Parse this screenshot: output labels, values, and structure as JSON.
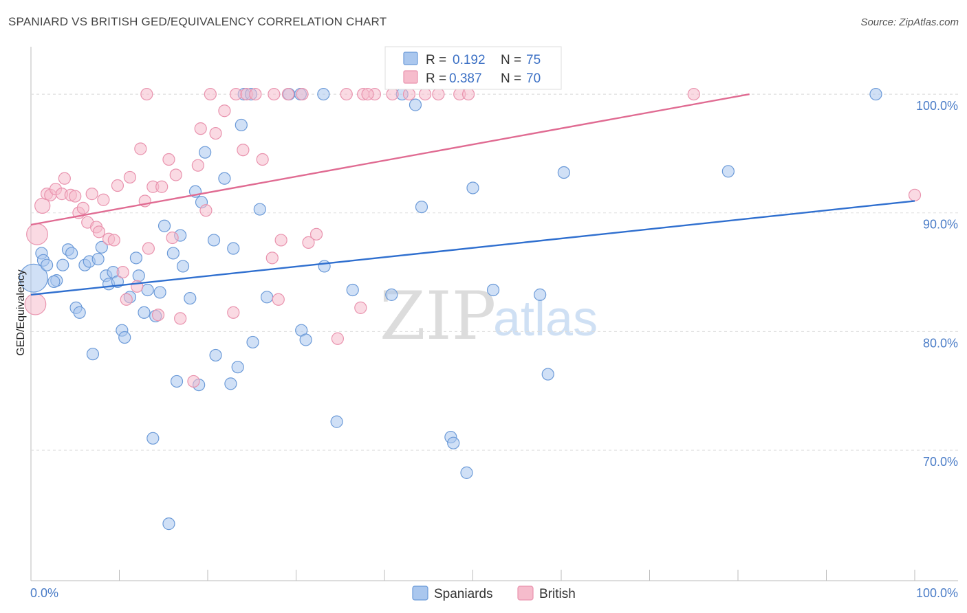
{
  "title": "SPANIARD VS BRITISH GED/EQUIVALENCY CORRELATION CHART",
  "source": "Source: ZipAtlas.com",
  "watermark": {
    "zip": "ZIP",
    "atlas": "atlas"
  },
  "colors": {
    "spaniards_fill": "#aac7ee",
    "spaniards_stroke": "#6b9ad8",
    "spaniards_line": "#2f6fcf",
    "british_fill": "#f6bccc",
    "british_stroke": "#e993ae",
    "british_line": "#e06b92",
    "tick_text": "#4a7cc7",
    "grid": "#dddddd"
  },
  "legend": {
    "r_label": "R =",
    "n_label": "N =",
    "rows": [
      {
        "r": "0.192",
        "n": "75"
      },
      {
        "r": "0.387",
        "n": "70"
      }
    ]
  },
  "chart_data": {
    "type": "scatter",
    "title": "SPANIARD VS BRITISH GED/EQUIVALENCY CORRELATION CHART",
    "xlabel": "",
    "ylabel": "GED/Equivalency",
    "xlim": [
      0,
      100
    ],
    "ylim": [
      59,
      104
    ],
    "x_tick_labels": [
      "0.0%",
      "100.0%"
    ],
    "y_ticks": [
      70,
      80,
      90,
      100
    ],
    "y_tick_labels": [
      "70.0%",
      "80.0%",
      "90.0%",
      "100.0%"
    ],
    "grid": true,
    "legend_position": "top-center",
    "series": [
      {
        "name": "Spaniards",
        "trend": {
          "x": [
            0,
            100
          ],
          "y": [
            83.1,
            91.0
          ]
        },
        "points": [
          [
            0.3,
            84.5,
            2.4
          ],
          [
            1.2,
            86.6,
            1
          ],
          [
            1.4,
            86.0,
            1
          ],
          [
            1.8,
            85.6,
            1
          ],
          [
            2.9,
            84.3,
            1
          ],
          [
            2.6,
            84.2,
            1
          ],
          [
            3.6,
            85.6,
            1
          ],
          [
            4.2,
            86.9,
            1
          ],
          [
            4.6,
            86.6,
            1
          ],
          [
            5.1,
            82.0,
            1
          ],
          [
            5.5,
            81.6,
            1
          ],
          [
            6.1,
            85.6,
            1
          ],
          [
            6.6,
            85.9,
            1
          ],
          [
            7.0,
            78.1,
            1
          ],
          [
            7.6,
            86.1,
            1
          ],
          [
            8.0,
            87.1,
            1
          ],
          [
            8.5,
            84.7,
            1
          ],
          [
            8.8,
            84.0,
            1
          ],
          [
            9.3,
            85.0,
            1
          ],
          [
            9.8,
            84.2,
            1
          ],
          [
            10.3,
            80.1,
            1
          ],
          [
            10.6,
            79.5,
            1
          ],
          [
            11.2,
            82.9,
            1
          ],
          [
            11.9,
            86.2,
            1
          ],
          [
            12.2,
            84.7,
            1
          ],
          [
            12.8,
            81.6,
            1
          ],
          [
            13.2,
            83.5,
            1
          ],
          [
            13.8,
            71.0,
            1
          ],
          [
            14.1,
            81.3,
            1
          ],
          [
            14.6,
            83.3,
            1
          ],
          [
            15.1,
            88.9,
            1
          ],
          [
            15.6,
            63.8,
            1
          ],
          [
            16.1,
            86.6,
            1
          ],
          [
            16.5,
            75.8,
            1
          ],
          [
            16.9,
            88.1,
            1
          ],
          [
            17.2,
            85.5,
            1
          ],
          [
            18.0,
            82.8,
            1
          ],
          [
            18.6,
            91.8,
            1
          ],
          [
            19.0,
            75.5,
            1
          ],
          [
            19.3,
            90.9,
            1
          ],
          [
            19.7,
            95.1,
            1
          ],
          [
            20.7,
            87.7,
            1
          ],
          [
            20.9,
            78.0,
            1
          ],
          [
            21.9,
            92.9,
            1
          ],
          [
            22.6,
            75.6,
            1
          ],
          [
            22.9,
            87.0,
            1
          ],
          [
            23.4,
            77.0,
            1
          ],
          [
            23.8,
            97.4,
            1
          ],
          [
            24.1,
            100.0,
            1
          ],
          [
            24.9,
            100.0,
            1
          ],
          [
            25.1,
            79.1,
            1
          ],
          [
            25.9,
            90.3,
            1
          ],
          [
            26.7,
            82.9,
            1
          ],
          [
            29.2,
            100.0,
            1
          ],
          [
            30.6,
            80.1,
            1
          ],
          [
            31.1,
            79.3,
            1
          ],
          [
            33.1,
            100.0,
            1
          ],
          [
            33.2,
            85.5,
            1
          ],
          [
            34.6,
            72.4,
            1
          ],
          [
            36.4,
            83.5,
            1
          ],
          [
            40.8,
            83.1,
            1
          ],
          [
            42.0,
            100.0,
            1
          ],
          [
            43.5,
            99.1,
            1
          ],
          [
            44.2,
            90.5,
            1
          ],
          [
            47.5,
            71.1,
            1
          ],
          [
            47.8,
            70.6,
            1
          ],
          [
            49.3,
            68.1,
            1
          ],
          [
            50.0,
            92.1,
            1
          ],
          [
            52.3,
            83.5,
            1
          ],
          [
            57.6,
            83.1,
            1
          ],
          [
            58.5,
            76.4,
            1
          ],
          [
            60.3,
            93.4,
            1
          ],
          [
            78.9,
            93.5,
            1
          ],
          [
            95.6,
            100.0,
            1
          ],
          [
            30.5,
            100.0,
            1
          ]
        ]
      },
      {
        "name": "British",
        "trend": {
          "x": [
            0,
            81.3
          ],
          "y": [
            89.0,
            100.0
          ]
        },
        "points": [
          [
            0.5,
            82.3,
            1.8
          ],
          [
            0.7,
            88.2,
            1.8
          ],
          [
            1.3,
            90.6,
            1.3
          ],
          [
            1.8,
            91.6,
            1
          ],
          [
            2.2,
            91.5,
            1
          ],
          [
            2.8,
            92.0,
            1
          ],
          [
            3.5,
            91.6,
            1
          ],
          [
            3.8,
            92.9,
            1
          ],
          [
            4.5,
            91.5,
            1
          ],
          [
            5.0,
            91.4,
            1
          ],
          [
            5.4,
            90.0,
            1
          ],
          [
            5.9,
            90.4,
            1
          ],
          [
            6.4,
            89.2,
            1
          ],
          [
            6.9,
            91.6,
            1
          ],
          [
            7.4,
            88.8,
            1
          ],
          [
            7.7,
            88.4,
            1
          ],
          [
            8.2,
            91.1,
            1
          ],
          [
            8.8,
            87.8,
            1
          ],
          [
            9.4,
            87.7,
            1
          ],
          [
            9.8,
            92.3,
            1
          ],
          [
            10.4,
            85.0,
            1
          ],
          [
            10.8,
            82.7,
            1
          ],
          [
            11.2,
            93.0,
            1
          ],
          [
            12.0,
            83.8,
            1
          ],
          [
            12.4,
            95.4,
            1
          ],
          [
            12.9,
            91.0,
            1
          ],
          [
            13.3,
            87.0,
            1
          ],
          [
            13.8,
            92.2,
            1
          ],
          [
            14.4,
            81.4,
            1
          ],
          [
            14.8,
            92.2,
            1
          ],
          [
            15.6,
            94.5,
            1
          ],
          [
            16.0,
            87.9,
            1
          ],
          [
            16.4,
            93.2,
            1
          ],
          [
            16.9,
            81.1,
            1
          ],
          [
            18.4,
            75.8,
            1
          ],
          [
            18.9,
            94.0,
            1
          ],
          [
            19.2,
            97.1,
            1
          ],
          [
            19.8,
            90.2,
            1
          ],
          [
            20.9,
            96.7,
            1
          ],
          [
            21.9,
            98.6,
            1
          ],
          [
            22.9,
            81.6,
            1
          ],
          [
            23.2,
            100.0,
            1
          ],
          [
            24.0,
            95.3,
            1
          ],
          [
            24.4,
            100.0,
            1
          ],
          [
            25.4,
            100.0,
            1
          ],
          [
            26.2,
            94.5,
            1
          ],
          [
            27.3,
            86.2,
            1
          ],
          [
            28.0,
            82.7,
            1
          ],
          [
            28.3,
            87.7,
            1
          ],
          [
            29.1,
            100.0,
            1
          ],
          [
            30.7,
            100.0,
            1
          ],
          [
            31.4,
            87.5,
            1
          ],
          [
            32.3,
            88.2,
            1
          ],
          [
            35.7,
            100.0,
            1
          ],
          [
            37.3,
            82.0,
            1
          ],
          [
            37.6,
            100.0,
            1
          ],
          [
            38.9,
            100.0,
            1
          ],
          [
            40.9,
            100.0,
            1
          ],
          [
            44.6,
            100.0,
            1
          ],
          [
            46.1,
            100.0,
            1
          ],
          [
            48.5,
            100.0,
            1
          ],
          [
            49.5,
            100.0,
            1
          ],
          [
            75.0,
            100.0,
            1
          ],
          [
            100.0,
            91.5,
            1
          ],
          [
            27.5,
            100.0,
            1
          ],
          [
            34.7,
            79.4,
            1
          ],
          [
            38.1,
            100.0,
            1
          ],
          [
            20.3,
            100.0,
            1
          ],
          [
            13.1,
            100.0,
            1
          ],
          [
            42.8,
            100.0,
            1
          ]
        ]
      }
    ]
  }
}
